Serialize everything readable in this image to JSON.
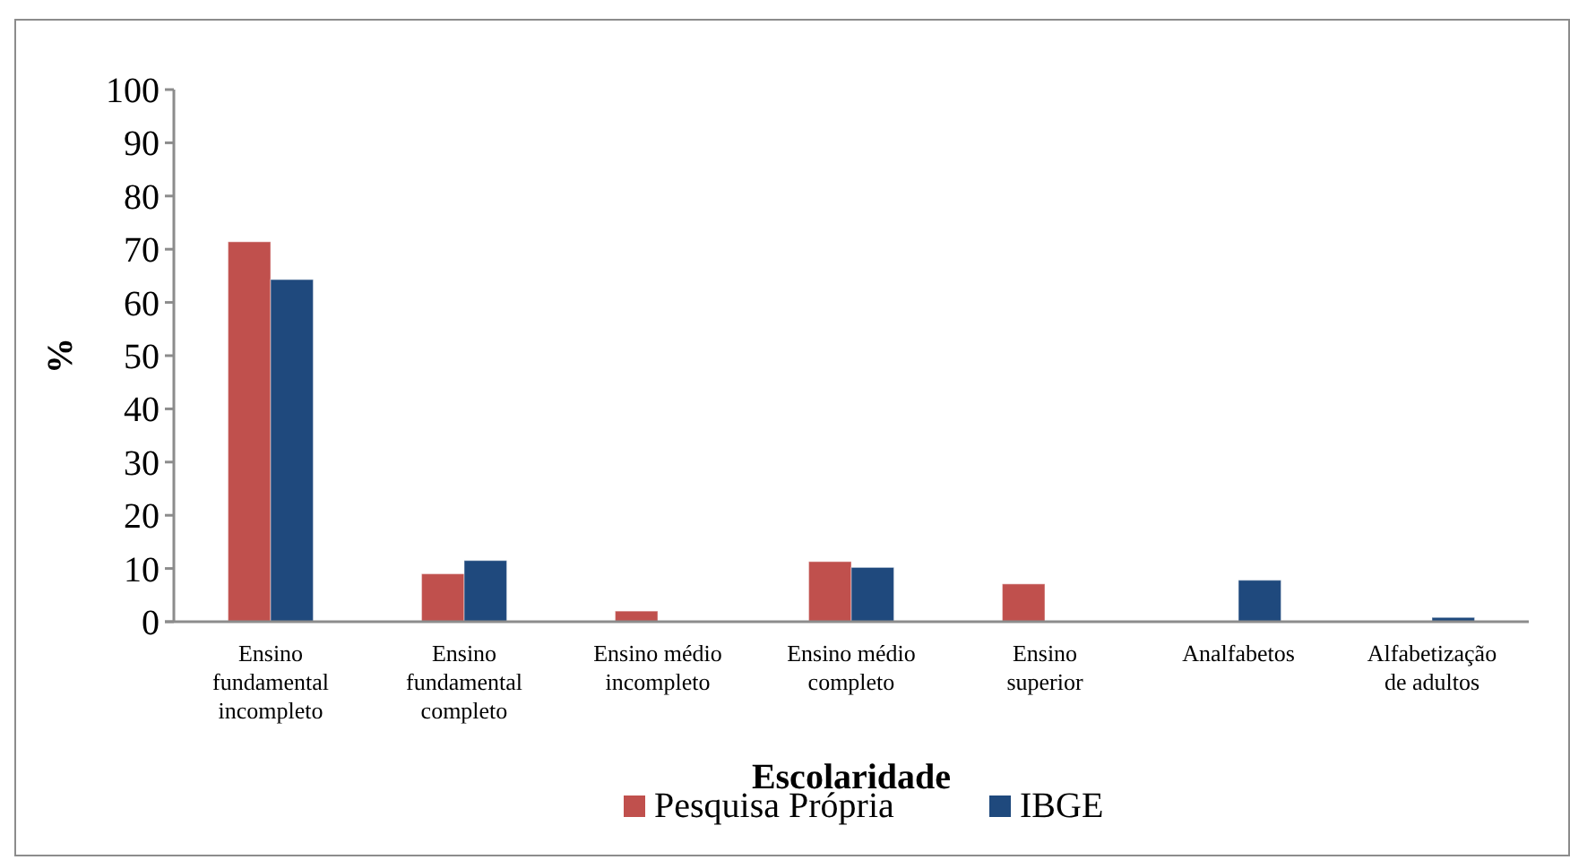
{
  "chart_data": {
    "type": "bar",
    "xlabel": "Escolaridade",
    "ylabel": "%",
    "categories": [
      "Ensino fundamental incompleto",
      "Ensino fundamental completo",
      "Ensino médio incompleto",
      "Ensino médio completo",
      "Ensino superior",
      "Analfabetos",
      "Alfabetização de adultos"
    ],
    "series": [
      {
        "name": "Pesquisa Própria",
        "color": "#c0504d",
        "values": [
          71.4,
          9.0,
          2.0,
          11.3,
          7.1,
          null,
          null
        ]
      },
      {
        "name": "IBGE",
        "color": "#1f497d",
        "values": [
          64.3,
          11.5,
          null,
          10.2,
          null,
          7.8,
          0.8
        ]
      }
    ],
    "ylim": [
      0,
      100
    ],
    "yticks": [
      0,
      10,
      20,
      30,
      40,
      50,
      60,
      70,
      80,
      90,
      100
    ],
    "grid": false,
    "legend": "bottom"
  }
}
